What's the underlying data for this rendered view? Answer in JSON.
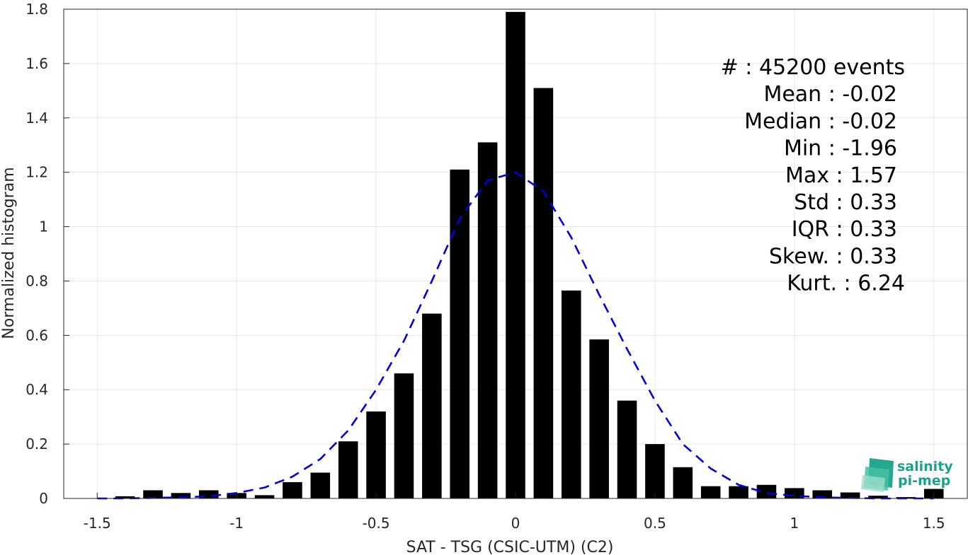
{
  "chart_data": {
    "type": "bar",
    "xlabel": "SAT - TSG (CSIC-UTM) (C2)",
    "ylabel": "Normalized histogram",
    "xlim": [
      -1.62,
      1.62
    ],
    "ylim": [
      0,
      1.8
    ],
    "xticks": [
      -1.5,
      -1,
      -0.5,
      0,
      0.5,
      1,
      1.5
    ],
    "xtick_labels": [
      "-1.5",
      "-1",
      "-0.5",
      "0",
      "0.5",
      "1",
      "1.5"
    ],
    "yticks": [
      0,
      0.2,
      0.4,
      0.6,
      0.8,
      1,
      1.2,
      1.4,
      1.6,
      1.8
    ],
    "ytick_labels": [
      "0",
      "0.2",
      "0.4",
      "0.6",
      "0.8",
      "1",
      "1.2",
      "1.4",
      "1.6",
      "1.8"
    ],
    "grid": true,
    "bar_color": "#000000",
    "bar_width": 0.07,
    "bars": {
      "x": [
        -1.4,
        -1.3,
        -1.2,
        -1.1,
        -1.0,
        -0.9,
        -0.8,
        -0.7,
        -0.6,
        -0.5,
        -0.4,
        -0.3,
        -0.2,
        -0.1,
        0.0,
        0.1,
        0.2,
        0.3,
        0.4,
        0.5,
        0.6,
        0.7,
        0.8,
        0.9,
        1.0,
        1.1,
        1.2,
        1.3,
        1.4,
        1.5
      ],
      "values": [
        0.008,
        0.03,
        0.02,
        0.03,
        0.02,
        0.012,
        0.06,
        0.095,
        0.21,
        0.32,
        0.46,
        0.68,
        1.21,
        1.31,
        1.79,
        1.51,
        0.765,
        0.585,
        0.36,
        0.2,
        0.115,
        0.045,
        0.045,
        0.05,
        0.038,
        0.03,
        0.022,
        0.01,
        0.005,
        0.035
      ]
    },
    "fit_curve": {
      "style": "dashed",
      "color": "#0000dd",
      "x": [
        -1.5,
        -1.4,
        -1.3,
        -1.2,
        -1.1,
        -1.0,
        -0.9,
        -0.8,
        -0.7,
        -0.6,
        -0.5,
        -0.4,
        -0.3,
        -0.2,
        -0.1,
        0.0,
        0.1,
        0.2,
        0.3,
        0.4,
        0.5,
        0.6,
        0.7,
        0.8,
        0.9,
        1.0,
        1.1,
        1.2,
        1.3,
        1.4,
        1.5
      ],
      "values": [
        0.0,
        0.0,
        0.002,
        0.004,
        0.008,
        0.02,
        0.04,
        0.08,
        0.145,
        0.25,
        0.4,
        0.58,
        0.8,
        1.03,
        1.17,
        1.2,
        1.13,
        0.96,
        0.75,
        0.55,
        0.36,
        0.2,
        0.11,
        0.05,
        0.02,
        0.01,
        0.004,
        0.002,
        0.0,
        0.0,
        0.0
      ]
    },
    "stats": [
      {
        "label": "#  :",
        "value": "45200 events"
      },
      {
        "label": "Mean :",
        "value": "-0.02"
      },
      {
        "label": "Median :",
        "value": "-0.02"
      },
      {
        "label": "Min :",
        "value": "-1.96"
      },
      {
        "label": "Max :",
        "value": "1.57"
      },
      {
        "label": "Std :",
        "value": "0.33"
      },
      {
        "label": "IQR :",
        "value": "0.33"
      },
      {
        "label": "Skew. :",
        "value": "0.33"
      },
      {
        "label": "Kurt. :",
        "value": "6.24"
      }
    ]
  },
  "logo": {
    "line1": "salinity",
    "line2": "pi-mep",
    "color": "#1aa38a"
  }
}
